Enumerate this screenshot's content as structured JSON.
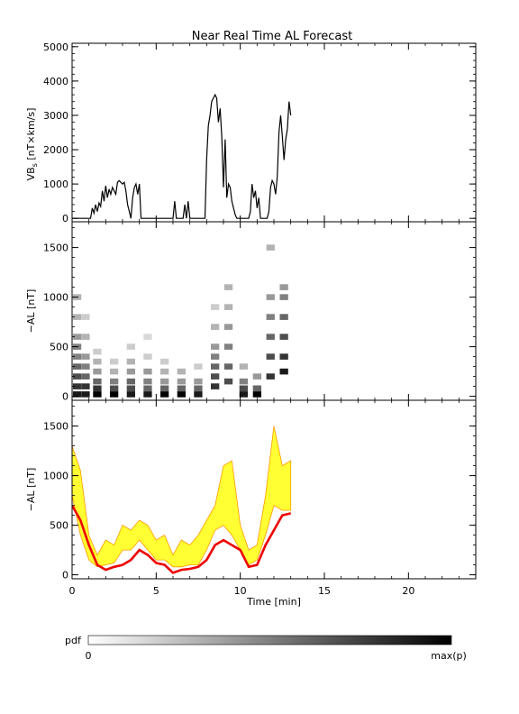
{
  "title": "Near Real Time AL Forecast",
  "colors": {
    "axes": "#000000",
    "heat_low": "#ffffff",
    "heat_high": "#000000",
    "ensemble_light": "#ffff33",
    "ensemble_dark": "#ff9900",
    "median": "#ee0000"
  },
  "chart_data": [
    {
      "type": "line",
      "panel": "vbs",
      "ylabel": "VB",
      "ylabel_sub": "s",
      "ylabel_unit": "[nT×km/s]",
      "xlim": [
        0,
        24
      ],
      "ylim": [
        -100,
        5100
      ],
      "yticks": [
        0,
        1000,
        2000,
        3000,
        4000,
        5000
      ],
      "series": [
        {
          "x": [
            0,
            0.1,
            0.2,
            0.3,
            0.4,
            0.5,
            0.6,
            0.7,
            0.8,
            0.9,
            1.0,
            1.1,
            1.2,
            1.3,
            1.4,
            1.5,
            1.6,
            1.7,
            1.8,
            1.9,
            2.0,
            2.1,
            2.2,
            2.3,
            2.4,
            2.5,
            2.6,
            2.7,
            2.8,
            2.9,
            3.0,
            3.1,
            3.2,
            3.3,
            3.4,
            3.5,
            3.6,
            3.7,
            3.8,
            3.9,
            4.0,
            4.1,
            4.2,
            4.3,
            4.4,
            4.5,
            4.6,
            4.7,
            4.8,
            4.9,
            5.0,
            5.1,
            5.2,
            5.3,
            5.4,
            5.5,
            5.6,
            5.7,
            5.8,
            5.9,
            6.0,
            6.1,
            6.2,
            6.3,
            6.4,
            6.5,
            6.6,
            6.7,
            6.8,
            6.9,
            7.0,
            7.1,
            7.2,
            7.3,
            7.4,
            7.5,
            7.6,
            7.7,
            7.8,
            7.9,
            8.0,
            8.1,
            8.2,
            8.3,
            8.4,
            8.5,
            8.6,
            8.7,
            8.8,
            8.9,
            9.0,
            9.1,
            9.2,
            9.3,
            9.4,
            9.5,
            9.6,
            9.7,
            9.8,
            9.9,
            10.0,
            10.1,
            10.2,
            10.3,
            10.4,
            10.5,
            10.6,
            10.7,
            10.8,
            10.9,
            11.0,
            11.1,
            11.2,
            11.3,
            11.4,
            11.5,
            11.6,
            11.7,
            11.8,
            11.9,
            12.0,
            12.1,
            12.2,
            12.3,
            12.4,
            12.5,
            12.6,
            12.7,
            12.8,
            12.9,
            13.0
          ],
          "y": [
            0,
            0,
            0,
            0,
            0,
            0,
            0,
            0,
            0,
            0,
            0,
            0,
            300,
            150,
            400,
            200,
            450,
            350,
            800,
            500,
            950,
            600,
            850,
            700,
            900,
            800,
            700,
            1050,
            1100,
            1050,
            1000,
            1050,
            800,
            400,
            200,
            0,
            600,
            900,
            1000,
            700,
            1000,
            0,
            0,
            0,
            0,
            0,
            0,
            0,
            0,
            0,
            0,
            0,
            0,
            0,
            0,
            0,
            0,
            0,
            0,
            0,
            0,
            500,
            0,
            0,
            0,
            0,
            0,
            400,
            0,
            500,
            0,
            0,
            0,
            0,
            0,
            0,
            0,
            0,
            0,
            0,
            1700,
            2700,
            3000,
            3400,
            3500,
            3600,
            3500,
            2800,
            3200,
            2400,
            900,
            2300,
            600,
            1000,
            900,
            500,
            300,
            100,
            0,
            0,
            0,
            0,
            0,
            0,
            0,
            0,
            200,
            1000,
            600,
            800,
            300,
            600,
            0,
            0,
            0,
            0,
            0,
            200,
            900,
            1100,
            1000,
            700,
            1200,
            2500,
            3000,
            2400,
            1700,
            2300,
            2600,
            3400,
            3000
          ]
        }
      ]
    },
    {
      "type": "heatmap",
      "panel": "pdf",
      "ylabel": "−AL [nT]",
      "xlim": [
        0,
        24
      ],
      "ylim": [
        -40,
        1760
      ],
      "yticks": [
        0,
        500,
        1000,
        1500
      ],
      "columns": [
        {
          "x": 0.3,
          "cells": [
            [
              20,
              0.9
            ],
            [
              100,
              0.8
            ],
            [
              200,
              0.7
            ],
            [
              300,
              0.6
            ],
            [
              400,
              0.5
            ],
            [
              500,
              0.5
            ],
            [
              600,
              0.4
            ],
            [
              800,
              0.3
            ],
            [
              1000,
              0.3
            ]
          ]
        },
        {
          "x": 0.8,
          "cells": [
            [
              20,
              0.9
            ],
            [
              100,
              0.8
            ],
            [
              200,
              0.6
            ],
            [
              300,
              0.5
            ],
            [
              400,
              0.4
            ],
            [
              600,
              0.3
            ],
            [
              800,
              0.2
            ]
          ]
        },
        {
          "x": 1.5,
          "cells": [
            [
              20,
              1.0
            ],
            [
              80,
              0.8
            ],
            [
              150,
              0.6
            ],
            [
              250,
              0.4
            ],
            [
              350,
              0.3
            ],
            [
              450,
              0.2
            ]
          ]
        },
        {
          "x": 2.5,
          "cells": [
            [
              20,
              1.0
            ],
            [
              80,
              0.7
            ],
            [
              150,
              0.5
            ],
            [
              250,
              0.3
            ],
            [
              350,
              0.2
            ]
          ]
        },
        {
          "x": 3.5,
          "cells": [
            [
              20,
              0.9
            ],
            [
              80,
              0.7
            ],
            [
              150,
              0.6
            ],
            [
              250,
              0.4
            ],
            [
              350,
              0.3
            ],
            [
              500,
              0.2
            ]
          ]
        },
        {
          "x": 4.5,
          "cells": [
            [
              20,
              0.9
            ],
            [
              80,
              0.6
            ],
            [
              150,
              0.5
            ],
            [
              250,
              0.4
            ],
            [
              400,
              0.2
            ],
            [
              600,
              0.15
            ]
          ]
        },
        {
          "x": 5.5,
          "cells": [
            [
              20,
              1.0
            ],
            [
              80,
              0.6
            ],
            [
              150,
              0.4
            ],
            [
              250,
              0.3
            ],
            [
              350,
              0.2
            ]
          ]
        },
        {
          "x": 6.5,
          "cells": [
            [
              20,
              1.0
            ],
            [
              80,
              0.6
            ],
            [
              150,
              0.4
            ],
            [
              250,
              0.3
            ]
          ]
        },
        {
          "x": 7.5,
          "cells": [
            [
              20,
              0.9
            ],
            [
              80,
              0.6
            ],
            [
              150,
              0.4
            ],
            [
              300,
              0.2
            ]
          ]
        },
        {
          "x": 8.5,
          "cells": [
            [
              100,
              0.8
            ],
            [
              200,
              0.7
            ],
            [
              300,
              0.6
            ],
            [
              400,
              0.5
            ],
            [
              500,
              0.4
            ],
            [
              700,
              0.3
            ],
            [
              900,
              0.2
            ]
          ]
        },
        {
          "x": 9.3,
          "cells": [
            [
              150,
              0.7
            ],
            [
              300,
              0.6
            ],
            [
              500,
              0.5
            ],
            [
              700,
              0.4
            ],
            [
              900,
              0.3
            ],
            [
              1100,
              0.3
            ]
          ]
        },
        {
          "x": 10.2,
          "cells": [
            [
              20,
              0.9
            ],
            [
              80,
              0.7
            ],
            [
              150,
              0.5
            ],
            [
              300,
              0.3
            ]
          ]
        },
        {
          "x": 11.0,
          "cells": [
            [
              20,
              1.0
            ],
            [
              80,
              0.6
            ],
            [
              200,
              0.4
            ]
          ]
        },
        {
          "x": 11.8,
          "cells": [
            [
              200,
              0.8
            ],
            [
              400,
              0.7
            ],
            [
              600,
              0.6
            ],
            [
              800,
              0.5
            ],
            [
              1000,
              0.4
            ],
            [
              1500,
              0.3
            ]
          ]
        },
        {
          "x": 12.6,
          "cells": [
            [
              250,
              0.9
            ],
            [
              400,
              0.8
            ],
            [
              600,
              0.7
            ],
            [
              800,
              0.6
            ],
            [
              1000,
              0.5
            ],
            [
              1100,
              0.4
            ]
          ]
        }
      ]
    },
    {
      "type": "line",
      "panel": "ensemble",
      "ylabel": "−AL [nT]",
      "xlabel": "Time [min]",
      "xlim": [
        0,
        24
      ],
      "xticks": [
        0,
        5,
        10,
        15,
        20
      ],
      "ylim": [
        -40,
        1760
      ],
      "yticks": [
        0,
        500,
        1000,
        1500
      ],
      "x": [
        0,
        0.5,
        1.0,
        1.5,
        2.0,
        2.5,
        3.0,
        3.5,
        4.0,
        4.5,
        5.0,
        5.5,
        6.0,
        6.5,
        7.0,
        7.5,
        8.0,
        8.5,
        9.0,
        9.5,
        10.0,
        10.5,
        11.0,
        11.5,
        12.0,
        12.5,
        13.0
      ],
      "series": [
        {
          "name": "",
          "role": "ensemble_max",
          "values": [
            1300,
            1050,
            400,
            200,
            350,
            300,
            500,
            450,
            550,
            500,
            350,
            400,
            200,
            350,
            300,
            400,
            550,
            700,
            1100,
            1150,
            500,
            250,
            300,
            800,
            1500,
            1100,
            1150
          ]
        },
        {
          "name": "",
          "role": "ensemble_min",
          "values": [
            800,
            400,
            150,
            80,
            100,
            120,
            250,
            250,
            350,
            250,
            150,
            150,
            80,
            80,
            100,
            100,
            250,
            450,
            500,
            400,
            250,
            100,
            150,
            400,
            700,
            650,
            650
          ]
        },
        {
          "name": "",
          "role": "median",
          "values": [
            700,
            550,
            300,
            100,
            50,
            80,
            100,
            150,
            250,
            200,
            120,
            100,
            20,
            50,
            60,
            80,
            150,
            300,
            350,
            300,
            250,
            80,
            100,
            300,
            450,
            600,
            620
          ]
        }
      ]
    }
  ],
  "colorbar": {
    "label": "pdf",
    "min_label": "0",
    "max_label": "max(p)"
  }
}
